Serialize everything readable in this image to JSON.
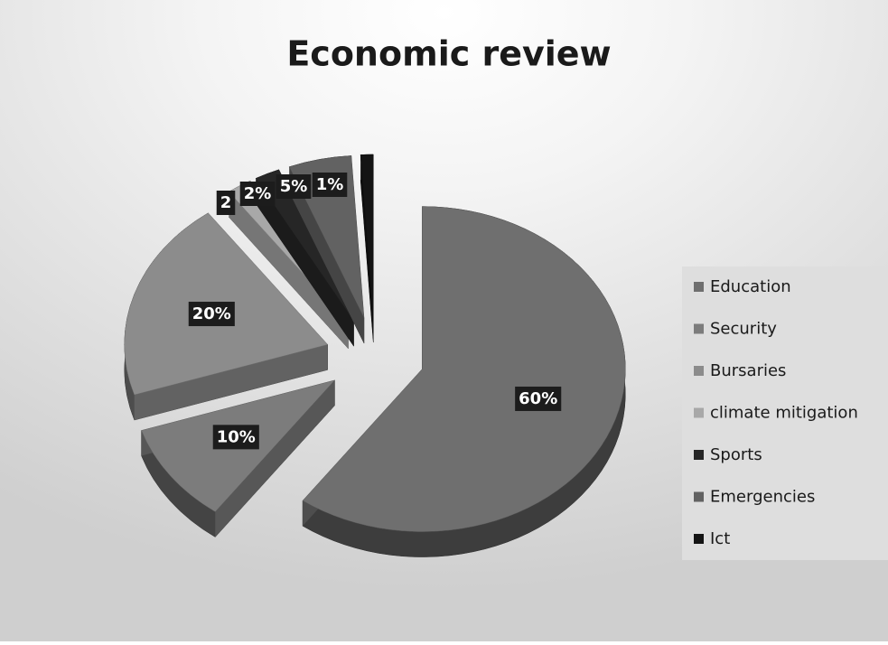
{
  "chart_data": {
    "type": "pie",
    "title": "Economic review",
    "categories": [
      "Education",
      "Security",
      "Bursaries",
      "climate mitigation",
      "Sports",
      "Emergencies",
      "Ict"
    ],
    "values": [
      60,
      10,
      20,
      2,
      2,
      5,
      1
    ],
    "value_labels": [
      "60%",
      "10%",
      "20%",
      "2",
      "2%",
      "5%",
      "1%"
    ],
    "colors": [
      "#6f6f6f",
      "#7c7c7c",
      "#8c8c8c",
      "#a8a8a8",
      "#262626",
      "#626262",
      "#141414"
    ],
    "legend": "right"
  }
}
